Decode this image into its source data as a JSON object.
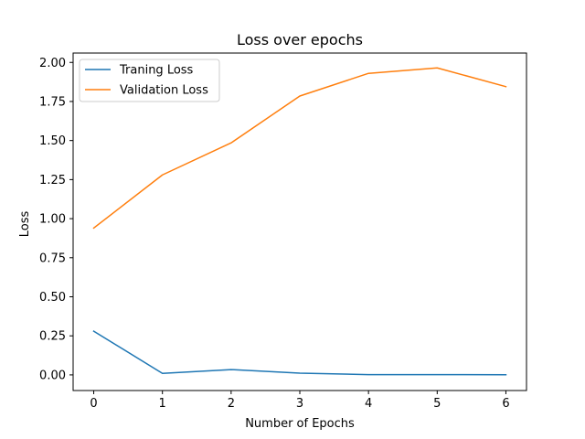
{
  "chart_data": {
    "type": "line",
    "title": "Loss over epochs",
    "xlabel": "Number of Epochs",
    "ylabel": "Loss",
    "x": [
      0,
      1,
      2,
      3,
      4,
      5,
      6
    ],
    "xticks": [
      "0",
      "1",
      "2",
      "3",
      "4",
      "5",
      "6"
    ],
    "yticks": [
      "0.00",
      "0.25",
      "0.50",
      "0.75",
      "1.00",
      "1.25",
      "1.50",
      "1.75",
      "2.00"
    ],
    "xlim": [
      -0.3,
      6.3
    ],
    "ylim": [
      -0.1,
      2.06
    ],
    "grid": false,
    "legend_position": "upper-left",
    "series": [
      {
        "name": "Traning Loss",
        "color": "#1f77b4",
        "values": [
          0.28,
          0.01,
          0.034,
          0.011,
          0.002,
          0.002,
          0.001
        ]
      },
      {
        "name": "Validation Loss",
        "color": "#ff7f0e",
        "values": [
          0.94,
          1.28,
          1.485,
          1.785,
          1.93,
          1.965,
          1.845
        ]
      }
    ]
  }
}
